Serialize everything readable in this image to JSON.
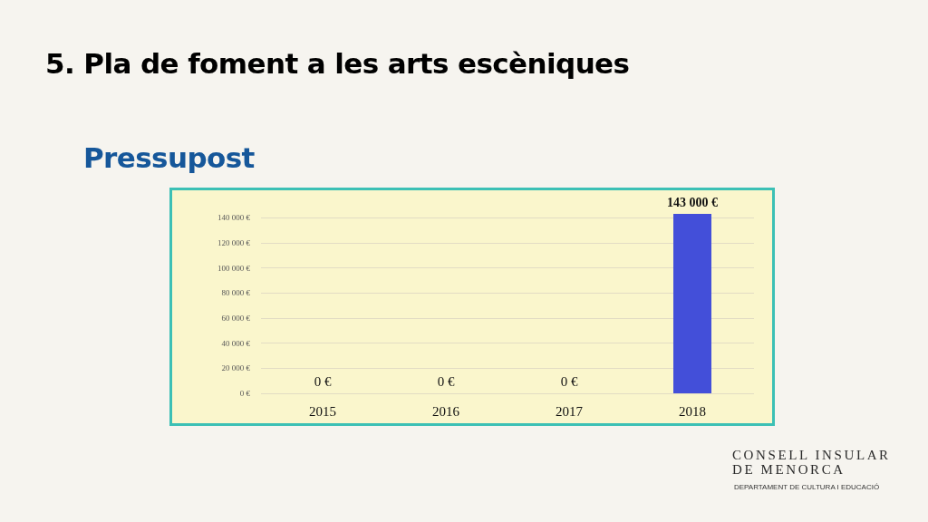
{
  "chart_data": {
    "type": "bar",
    "title": "5. Pla de foment a les arts escèniques",
    "subtitle": "Pressupost",
    "categories": [
      "2015",
      "2016",
      "2017",
      "2018"
    ],
    "values": [
      0,
      0,
      0,
      143000
    ],
    "color": "#434fd9",
    "value_labels": [
      "0 €",
      "0 €",
      "0 €",
      "143 000 €"
    ],
    "ylim": [
      0,
      143000
    ],
    "yticks": [
      {
        "value": 0,
        "label": "0 €"
      },
      {
        "value": 20000,
        "label": "20 000 €"
      },
      {
        "value": 40000,
        "label": "40 000 €"
      },
      {
        "value": 60000,
        "label": "60 000 €"
      },
      {
        "value": 80000,
        "label": "80 000 €"
      },
      {
        "value": 100000,
        "label": "100 000 €"
      },
      {
        "value": 120000,
        "label": "120 000 €"
      },
      {
        "value": 140000,
        "label": "140 000 €"
      }
    ],
    "grid": "y",
    "annotations": [
      "CONSELL INSULAR DE MENORCA",
      "DEPARTAMENT DE CULTURA I EDUCACIÓ"
    ]
  }
}
